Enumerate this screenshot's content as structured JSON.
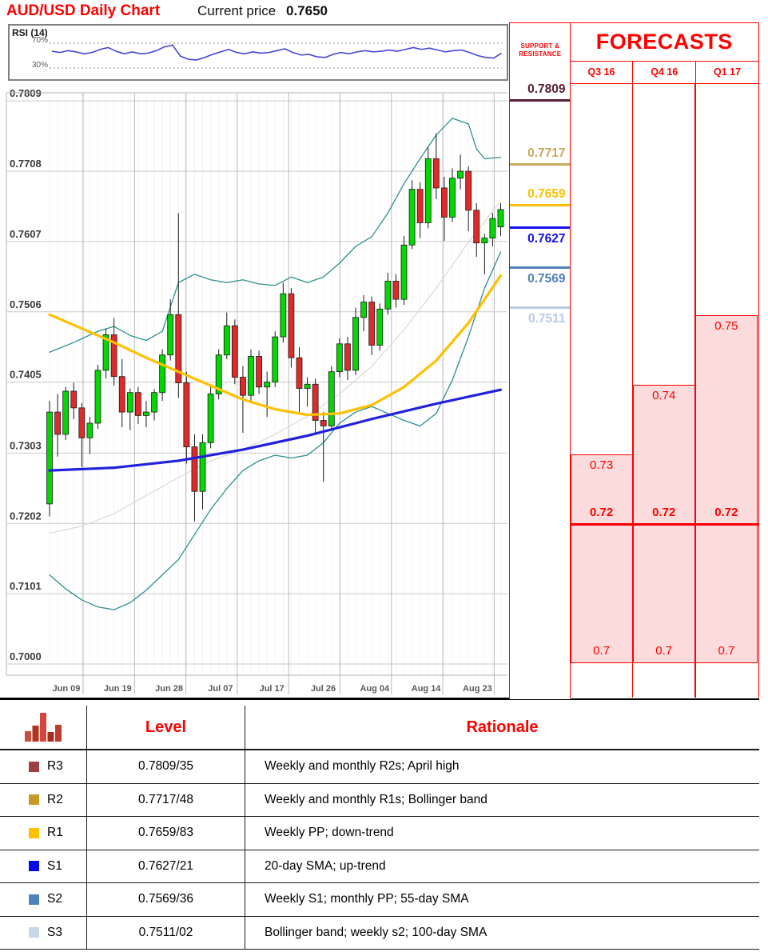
{
  "header": {
    "title": "AUD/USD Daily Chart",
    "price_label": "Current price",
    "price_value": "0.7650"
  },
  "rsi_panel": {
    "label": "RSI (14)",
    "upper": "70%",
    "lower": "30%"
  },
  "sr_column": {
    "header_line1": "SUPPORT &",
    "header_line2": "RESISTANCE",
    "levels": [
      {
        "text": "0.7809",
        "price": 0.7809,
        "color": "#571F37",
        "side": "r"
      },
      {
        "text": "0.7717",
        "price": 0.7717,
        "color": "#CBA95C",
        "side": "r"
      },
      {
        "text": "0.7659",
        "price": 0.7659,
        "color": "#FFC000",
        "side": "r"
      },
      {
        "text": "0.7627",
        "price": 0.7627,
        "color": "#1212E8",
        "side": "s"
      },
      {
        "text": "0.7569",
        "price": 0.7569,
        "color": "#4F81BD",
        "side": "s"
      },
      {
        "text": "0.7511",
        "price": 0.7511,
        "color": "#B5CBE5",
        "side": "s"
      }
    ]
  },
  "forecasts": {
    "title": "FORECASTS",
    "accent": "#FF0000",
    "fill": "#FBDBDB",
    "mid_price": 0.72,
    "bottom_price": 0.7,
    "columns": [
      {
        "label": "Q3 16",
        "range_top": 0.73,
        "range_top_label": "0.73",
        "mid_label": "0.72",
        "bottom_label": "0.7"
      },
      {
        "label": "Q4 16",
        "range_top": 0.74,
        "range_top_label": "0.74",
        "mid_label": "0.72",
        "bottom_label": "0.7"
      },
      {
        "label": "Q1 17",
        "range_top": 0.75,
        "range_top_label": "0.75",
        "mid_label": "0.72",
        "bottom_label": "0.7"
      }
    ]
  },
  "levels_table": {
    "col2": "Level",
    "col3": "Rationale",
    "icon_bars": [
      13,
      20,
      36,
      12,
      21
    ],
    "icon_colors": [
      "#C94F3D",
      "#B13323",
      "#D6453C",
      "#A52D1F",
      "#C13B2C"
    ],
    "rows": [
      {
        "tag": "R3",
        "color": "#9C4045",
        "level": "0.7809/35",
        "rationale": "Weekly and monthly R2s; April high"
      },
      {
        "tag": "R2",
        "color": "#C79A26",
        "level": "0.7717/48",
        "rationale": "Weekly and monthly R1s; Bollinger band"
      },
      {
        "tag": "R1",
        "color": "#FFC000",
        "level": "0.7659/83",
        "rationale": "Weekly PP; down-trend"
      },
      {
        "tag": "S1",
        "color": "#0404F0",
        "level": "0.7627/21",
        "rationale": "20-day SMA; up-trend"
      },
      {
        "tag": "S2",
        "color": "#4F81BD",
        "level": "0.7569/36",
        "rationale": "Weekly S1; monthly PP; 55-day SMA"
      },
      {
        "tag": "S3",
        "color": "#C8D6EA",
        "level": "0.7511/02",
        "rationale": "Bollinger band; weekly s2; 100-day SMA"
      }
    ]
  },
  "chart_data": [
    {
      "type": "candlestick",
      "title": "AUD/USD Daily Chart",
      "ylim": [
        0.7,
        0.7809
      ],
      "grid": true,
      "y_axis_labels": [
        "0.7809",
        "0.7708",
        "0.7607",
        "0.7506",
        "0.7405",
        "0.7303",
        "0.7202",
        "0.7101",
        "0.7000"
      ],
      "x_axis_labels": [
        "Jun 09",
        "Jun 19",
        "Jun 28",
        "Jul 07",
        "Jul 17",
        "Jul 26",
        "Aug 04",
        "Aug 14",
        "Aug 23"
      ],
      "x_label_indices": [
        4,
        10,
        17,
        23,
        30,
        36,
        42,
        49,
        55
      ],
      "up_color": "#00D800",
      "down_color": "#E02A2A",
      "candles": [
        [
          0.723,
          0.7378,
          0.7212,
          0.7362
        ],
        [
          0.7362,
          0.7388,
          0.7298,
          0.733
        ],
        [
          0.733,
          0.7398,
          0.7322,
          0.7392
        ],
        [
          0.7392,
          0.7404,
          0.7352,
          0.7368
        ],
        [
          0.7368,
          0.7375,
          0.7283,
          0.7325
        ],
        [
          0.7325,
          0.7355,
          0.7302,
          0.7346
        ],
        [
          0.7346,
          0.743,
          0.7338,
          0.7422
        ],
        [
          0.7422,
          0.7482,
          0.741,
          0.7473
        ],
        [
          0.7473,
          0.7497,
          0.74,
          0.7413
        ],
        [
          0.7413,
          0.7438,
          0.734,
          0.7362
        ],
        [
          0.7362,
          0.7396,
          0.7336,
          0.739
        ],
        [
          0.739,
          0.7398,
          0.7345,
          0.7357
        ],
        [
          0.7357,
          0.7378,
          0.734,
          0.7362
        ],
        [
          0.7362,
          0.7395,
          0.735,
          0.739
        ],
        [
          0.739,
          0.7452,
          0.7378,
          0.7444
        ],
        [
          0.7444,
          0.7524,
          0.7436,
          0.7502
        ],
        [
          0.7502,
          0.7648,
          0.7382,
          0.7404
        ],
        [
          0.7404,
          0.742,
          0.7288,
          0.7312
        ],
        [
          0.7312,
          0.733,
          0.7205,
          0.7248
        ],
        [
          0.7248,
          0.733,
          0.7222,
          0.7318
        ],
        [
          0.7318,
          0.7398,
          0.731,
          0.7388
        ],
        [
          0.7388,
          0.7452,
          0.738,
          0.7444
        ],
        [
          0.7444,
          0.7505,
          0.7438,
          0.7486
        ],
        [
          0.7486,
          0.7495,
          0.7402,
          0.7412
        ],
        [
          0.7412,
          0.7428,
          0.7332,
          0.7386
        ],
        [
          0.7386,
          0.7452,
          0.7378,
          0.7442
        ],
        [
          0.7442,
          0.745,
          0.7388,
          0.7398
        ],
        [
          0.7398,
          0.742,
          0.7355,
          0.7405
        ],
        [
          0.7405,
          0.7478,
          0.7398,
          0.747
        ],
        [
          0.747,
          0.7548,
          0.7462,
          0.7532
        ],
        [
          0.7532,
          0.754,
          0.7426,
          0.744
        ],
        [
          0.744,
          0.7455,
          0.7362,
          0.7396
        ],
        [
          0.7396,
          0.7412,
          0.737,
          0.7402
        ],
        [
          0.7402,
          0.741,
          0.7332,
          0.735
        ],
        [
          0.735,
          0.7362,
          0.7262,
          0.7342
        ],
        [
          0.7342,
          0.7428,
          0.7336,
          0.742
        ],
        [
          0.742,
          0.7468,
          0.7412,
          0.746
        ],
        [
          0.746,
          0.747,
          0.7408,
          0.7422
        ],
        [
          0.7422,
          0.7512,
          0.7415,
          0.7498
        ],
        [
          0.7498,
          0.753,
          0.7478,
          0.752
        ],
        [
          0.752,
          0.7528,
          0.7444,
          0.7458
        ],
        [
          0.7458,
          0.7518,
          0.745,
          0.751
        ],
        [
          0.751,
          0.7562,
          0.7502,
          0.755
        ],
        [
          0.755,
          0.756,
          0.7512,
          0.7524
        ],
        [
          0.7524,
          0.7615,
          0.7516,
          0.7602
        ],
        [
          0.7602,
          0.7695,
          0.7596,
          0.7682
        ],
        [
          0.7682,
          0.7692,
          0.7612,
          0.7634
        ],
        [
          0.7634,
          0.7742,
          0.7626,
          0.7726
        ],
        [
          0.7726,
          0.7762,
          0.7668,
          0.7684
        ],
        [
          0.7684,
          0.77,
          0.7608,
          0.7642
        ],
        [
          0.7642,
          0.7712,
          0.7635,
          0.7698
        ],
        [
          0.7698,
          0.7732,
          0.7682,
          0.7708
        ],
        [
          0.7708,
          0.7715,
          0.7622,
          0.7652
        ],
        [
          0.7652,
          0.7662,
          0.7585,
          0.7605
        ],
        [
          0.7605,
          0.7618,
          0.756,
          0.7612
        ],
        [
          0.7612,
          0.7648,
          0.76,
          0.764
        ],
        [
          0.7628,
          0.7662,
          0.7615,
          0.7653
        ]
      ],
      "overlays": [
        {
          "name": "sma-yellow",
          "color": "#FFC000",
          "width": 3.2,
          "points": [
            [
              0,
              0.7502
            ],
            [
              4,
              0.7482
            ],
            [
              8,
              0.7462
            ],
            [
              12,
              0.744
            ],
            [
              16,
              0.742
            ],
            [
              20,
              0.74
            ],
            [
              24,
              0.738
            ],
            [
              28,
              0.7366
            ],
            [
              32,
              0.7358
            ],
            [
              36,
              0.736
            ],
            [
              40,
              0.7372
            ],
            [
              44,
              0.7398
            ],
            [
              48,
              0.7436
            ],
            [
              52,
              0.749
            ],
            [
              56,
              0.7558
            ]
          ]
        },
        {
          "name": "sma-blue",
          "color": "#2020DD",
          "width": 3.2,
          "points": [
            [
              0,
              0.7278
            ],
            [
              8,
              0.7282
            ],
            [
              16,
              0.7292
            ],
            [
              24,
              0.7308
            ],
            [
              32,
              0.7328
            ],
            [
              40,
              0.7352
            ],
            [
              48,
              0.7374
            ],
            [
              56,
              0.7394
            ]
          ]
        },
        {
          "name": "bollinger-upper",
          "color": "#2F8E8E",
          "width": 1.3,
          "points": [
            [
              0,
              0.7448
            ],
            [
              3,
              0.7462
            ],
            [
              6,
              0.7478
            ],
            [
              8,
              0.7485
            ],
            [
              10,
              0.7472
            ],
            [
              12,
              0.7465
            ],
            [
              14,
              0.7478
            ],
            [
              16,
              0.7548
            ],
            [
              18,
              0.756
            ],
            [
              20,
              0.7552
            ],
            [
              22,
              0.7548
            ],
            [
              24,
              0.7552
            ],
            [
              26,
              0.7546
            ],
            [
              28,
              0.7544
            ],
            [
              30,
              0.7556
            ],
            [
              32,
              0.7548
            ],
            [
              34,
              0.7556
            ],
            [
              36,
              0.7576
            ],
            [
              38,
              0.76
            ],
            [
              40,
              0.7614
            ],
            [
              42,
              0.7648
            ],
            [
              44,
              0.769
            ],
            [
              46,
              0.7726
            ],
            [
              48,
              0.776
            ],
            [
              50,
              0.7784
            ],
            [
              52,
              0.7776
            ],
            [
              53,
              0.774
            ],
            [
              54,
              0.7726
            ],
            [
              56,
              0.7728
            ]
          ]
        },
        {
          "name": "bollinger-lower",
          "color": "#2F8E8E",
          "width": 1.3,
          "points": [
            [
              0,
              0.7128
            ],
            [
              2,
              0.7108
            ],
            [
              4,
              0.7092
            ],
            [
              6,
              0.7082
            ],
            [
              8,
              0.7078
            ],
            [
              10,
              0.7088
            ],
            [
              12,
              0.7106
            ],
            [
              14,
              0.7128
            ],
            [
              16,
              0.715
            ],
            [
              18,
              0.7186
            ],
            [
              20,
              0.7222
            ],
            [
              22,
              0.7252
            ],
            [
              24,
              0.7278
            ],
            [
              26,
              0.7292
            ],
            [
              28,
              0.73
            ],
            [
              30,
              0.7296
            ],
            [
              32,
              0.73
            ],
            [
              34,
              0.7318
            ],
            [
              36,
              0.7346
            ],
            [
              38,
              0.7362
            ],
            [
              40,
              0.737
            ],
            [
              42,
              0.736
            ],
            [
              44,
              0.735
            ],
            [
              46,
              0.7342
            ],
            [
              48,
              0.736
            ],
            [
              50,
              0.7408
            ],
            [
              52,
              0.747
            ],
            [
              54,
              0.754
            ],
            [
              56,
              0.7592
            ]
          ]
        },
        {
          "name": "trend-gray",
          "color": "#D9D9D9",
          "width": 1.2,
          "points": [
            [
              0,
              0.7188
            ],
            [
              4,
              0.7198
            ],
            [
              8,
              0.7216
            ],
            [
              12,
              0.7242
            ],
            [
              16,
              0.7268
            ],
            [
              20,
              0.7292
            ],
            [
              24,
              0.7308
            ],
            [
              28,
              0.733
            ],
            [
              32,
              0.7356
            ],
            [
              36,
              0.7388
            ],
            [
              40,
              0.7428
            ],
            [
              44,
              0.748
            ],
            [
              48,
              0.754
            ],
            [
              52,
              0.7606
            ],
            [
              56,
              0.7665
            ]
          ]
        }
      ]
    },
    {
      "type": "line",
      "name": "RSI (14)",
      "ylim": [
        0,
        100
      ],
      "guides": [
        70,
        30
      ],
      "color": "#4747DB",
      "values": [
        57,
        55,
        58,
        56,
        53,
        55,
        60,
        63,
        57,
        53,
        56,
        53,
        54,
        58,
        64,
        67,
        49,
        44,
        43,
        47,
        52,
        56,
        60,
        55,
        53,
        56,
        54,
        55,
        58,
        61,
        55,
        51,
        52,
        48,
        47,
        52,
        55,
        53,
        56,
        58,
        56,
        57,
        59,
        57,
        60,
        63,
        60,
        62,
        59,
        56,
        58,
        59,
        55,
        50,
        47,
        46,
        54
      ]
    },
    {
      "type": "bar",
      "name": "forecast-ranges",
      "categories": [
        "Q3 16",
        "Q4 16",
        "Q1 17"
      ],
      "series": [
        {
          "name": "range-high",
          "values": [
            0.73,
            0.74,
            0.75
          ]
        },
        {
          "name": "range-low",
          "values": [
            0.72,
            0.72,
            0.72
          ]
        }
      ],
      "extended_low": 0.7,
      "ylim": [
        0.695,
        0.785
      ]
    }
  ]
}
